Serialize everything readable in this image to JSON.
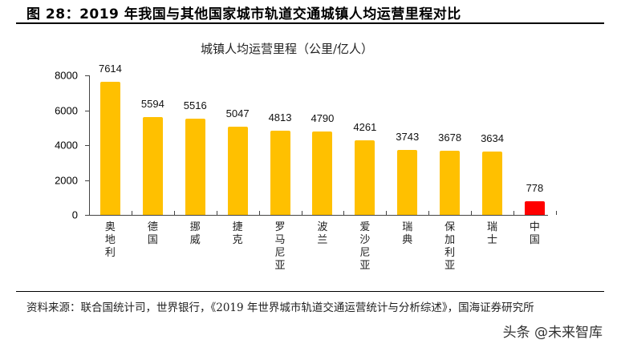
{
  "figure": {
    "title": "图 28：2019 年我国与其他国家城市轨道交通城镇人均运营里程对比",
    "source": "资料来源：联合国统计司，世界银行，《2019 年世界城市轨道交通运营统计与分析综述》，国海证券研究所",
    "watermark": "头条 @未来智库"
  },
  "colors": {
    "bar_default": "#FFC000",
    "bar_highlight": "#FF0000",
    "axis": "#444444"
  },
  "chart_data": {
    "type": "bar",
    "title": "城镇人均运营里程（公里/亿人）",
    "xlabel": "",
    "ylabel": "",
    "categories": [
      "奥地利",
      "德国",
      "挪威",
      "捷克",
      "罗马尼亚",
      "波兰",
      "爱沙尼亚",
      "瑞典",
      "保加利亚",
      "瑞士",
      "中国"
    ],
    "values": [
      7614,
      5594,
      5516,
      5047,
      4813,
      4790,
      4261,
      3743,
      3678,
      3634,
      778
    ],
    "value_labels": [
      "7614",
      "5594",
      "5516",
      "5047",
      "4813",
      "4790",
      "4261",
      "3743",
      "3678",
      "3634",
      "778"
    ],
    "highlight_index": 10,
    "ylim": [
      0,
      8000
    ],
    "yticks": [
      0,
      2000,
      4000,
      6000,
      8000
    ],
    "ytick_labels": [
      "0",
      "2000",
      "4000",
      "6000",
      "8000"
    ],
    "grid": false,
    "legend": null
  }
}
